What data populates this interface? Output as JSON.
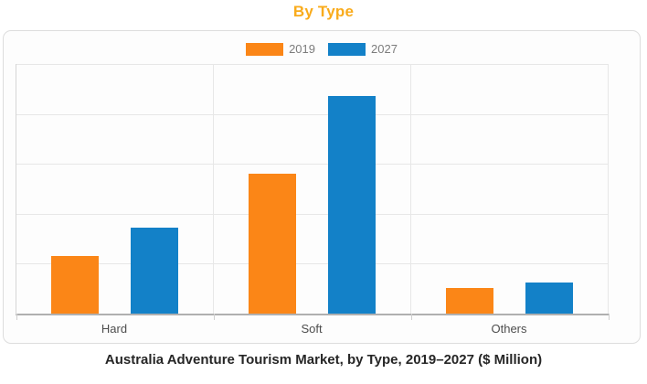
{
  "chart_data": {
    "type": "bar",
    "title": "By Type",
    "title_color": "#f9ab1b",
    "caption": "Australia Adventure Tourism Market, by Type, 2019–2027 ($ Million)",
    "categories": [
      "Hard",
      "Soft",
      "Others"
    ],
    "series": [
      {
        "name": "2019",
        "color": "#fb8617",
        "values": [
          116,
          280,
          52
        ]
      },
      {
        "name": "2027",
        "color": "#1381c8",
        "values": [
          172,
          436,
          63
        ]
      }
    ],
    "xlabel": "",
    "ylabel": "",
    "ylim": [
      0,
      500
    ],
    "y_gridlines": 5,
    "y_tick_labels_visible": false,
    "grid": true,
    "legend_position": "top-center",
    "unit": "$ Million"
  }
}
